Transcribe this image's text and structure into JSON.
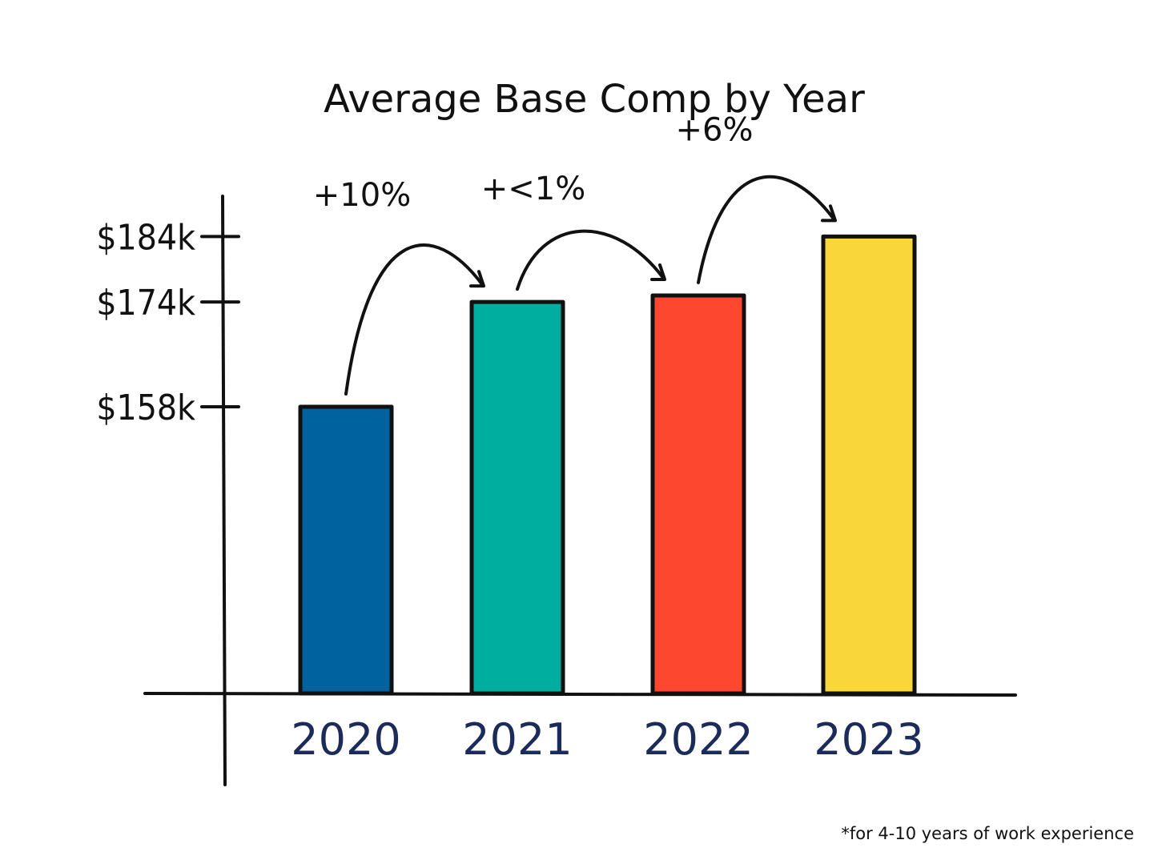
{
  "chart_data": {
    "type": "bar",
    "title": "Average Base Comp by Year",
    "categories": [
      "2020",
      "2021",
      "2022",
      "2023"
    ],
    "values": [
      158,
      174,
      175,
      184
    ],
    "colors": [
      "#00639f",
      "#00ae9f",
      "#fd472f",
      "#f9d63a"
    ],
    "yticks": [
      {
        "value": 158,
        "label": "$158k"
      },
      {
        "value": 174,
        "label": "$174k"
      },
      {
        "value": 184,
        "label": "$184k"
      }
    ],
    "annotations": [
      {
        "from": "2020",
        "to": "2021",
        "label": "+10%"
      },
      {
        "from": "2021",
        "to": "2022",
        "label": "+<1%"
      },
      {
        "from": "2022",
        "to": "2023",
        "label": "+6%"
      }
    ],
    "footnote": "*for 4-10 years of work experience",
    "xlabel": "",
    "ylabel": "",
    "grid": false,
    "legend": "none"
  }
}
